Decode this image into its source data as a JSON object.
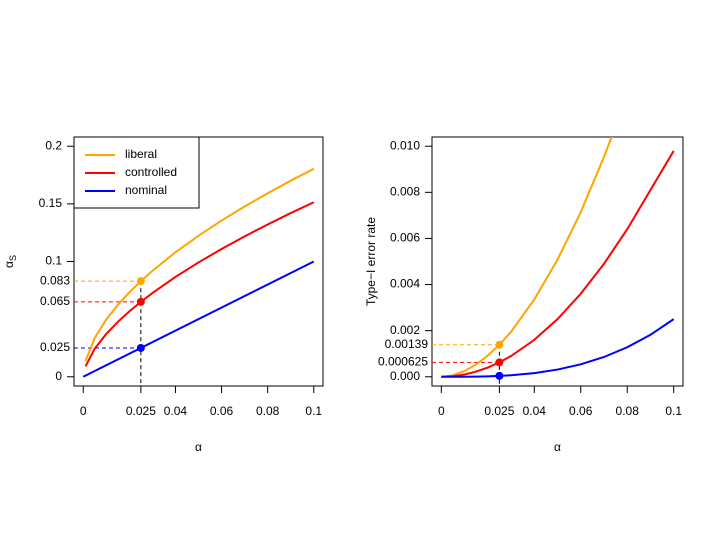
{
  "chart_data": [
    {
      "type": "line",
      "xlabel": "α",
      "ylabel": "α",
      "ylabel_sub": "S",
      "xlim": [
        -0.004,
        0.104
      ],
      "ylim": [
        -0.008,
        0.208
      ],
      "xticks": [
        0,
        0.025,
        0.04,
        0.06,
        0.08,
        0.1
      ],
      "yticks": [
        0,
        0.1,
        0.15,
        0.2
      ],
      "legend": "top-left",
      "series": [
        {
          "name": "liberal",
          "color": "#FFA500",
          "label_point": true,
          "point": [
            0.025,
            0.083
          ],
          "x": [
            0.001,
            0.005,
            0.01,
            0.015,
            0.02,
            0.025,
            0.03,
            0.04,
            0.05,
            0.06,
            0.07,
            0.08,
            0.09,
            0.1
          ],
          "values": [
            0.0137,
            0.0337,
            0.0497,
            0.0623,
            0.0732,
            0.083,
            0.0919,
            0.108,
            0.1223,
            0.1355,
            0.1477,
            0.1592,
            0.1701,
            0.1804
          ]
        },
        {
          "name": "controlled",
          "color": "#FF0000",
          "label_point": true,
          "point": [
            0.025,
            0.065
          ],
          "x": [
            0.001,
            0.005,
            0.01,
            0.015,
            0.02,
            0.025,
            0.03,
            0.04,
            0.05,
            0.06,
            0.07,
            0.08,
            0.09,
            0.1
          ],
          "values": [
            0.0091,
            0.0244,
            0.0372,
            0.0476,
            0.0567,
            0.065,
            0.0726,
            0.0866,
            0.0992,
            0.1108,
            0.1218,
            0.1321,
            0.142,
            0.1514
          ]
        },
        {
          "name": "nominal",
          "color": "#0000FF",
          "label_point": true,
          "point": [
            0.025,
            0.025
          ],
          "x": [
            0,
            0.1
          ],
          "values": [
            0,
            0.1
          ]
        }
      ]
    },
    {
      "type": "line",
      "xlabel": "α",
      "ylabel": "Type−I error rate",
      "xlim": [
        -0.004,
        0.104
      ],
      "ylim": [
        -0.0004,
        0.0104
      ],
      "xticks": [
        0,
        0.025,
        0.04,
        0.06,
        0.08,
        0.1
      ],
      "yticks": [
        {
          "value": 0,
          "label": "0.000"
        },
        {
          "value": 0.002,
          "label": "0.002"
        },
        {
          "value": 0.004,
          "label": "0.004"
        },
        {
          "value": 0.006,
          "label": "0.006"
        },
        {
          "value": 0.008,
          "label": "0.008"
        },
        {
          "value": 0.01,
          "label": "0.010"
        }
      ],
      "series": [
        {
          "color": "#FFA500",
          "label_point": true,
          "point": [
            0.025,
            0.00139
          ],
          "x": [
            0.001,
            0.005,
            0.01,
            0.015,
            0.02,
            0.025,
            0.03,
            0.04,
            0.05,
            0.06,
            0.07,
            0.074
          ],
          "values": [
            3.4e-06,
            6.87e-05,
            0.00025,
            0.000534,
            0.000916,
            0.00139,
            0.00195,
            0.00335,
            0.00508,
            0.00714,
            0.00954,
            0.01058
          ]
        },
        {
          "color": "#FF0000",
          "label_point": true,
          "point": [
            0.025,
            0.000625
          ],
          "x": [
            0,
            0.005,
            0.01,
            0.015,
            0.02,
            0.025,
            0.03,
            0.04,
            0.05,
            0.06,
            0.07,
            0.08,
            0.09,
            0.1
          ],
          "values": [
            0,
            2.5e-05,
            0.0001,
            0.000225,
            0.0004,
            0.000625,
            0.0009,
            0.0016,
            0.0025,
            0.0036,
            0.0049,
            0.0064,
            0.0081,
            0.0098
          ]
        },
        {
          "color": "#0000FF",
          "label_point": false,
          "point": [
            0.025,
            3.9e-05
          ],
          "x": [
            0,
            0.005,
            0.01,
            0.015,
            0.02,
            0.025,
            0.03,
            0.04,
            0.05,
            0.06,
            0.07,
            0.08,
            0.09,
            0.1
          ],
          "values": [
            0,
            3e-07,
            2.5e-06,
            8.4e-06,
            2e-05,
            3.9e-05,
            6.75e-05,
            0.00016,
            0.000313,
            0.00054,
            0.000858,
            0.00128,
            0.00182,
            0.0025
          ]
        }
      ]
    }
  ]
}
